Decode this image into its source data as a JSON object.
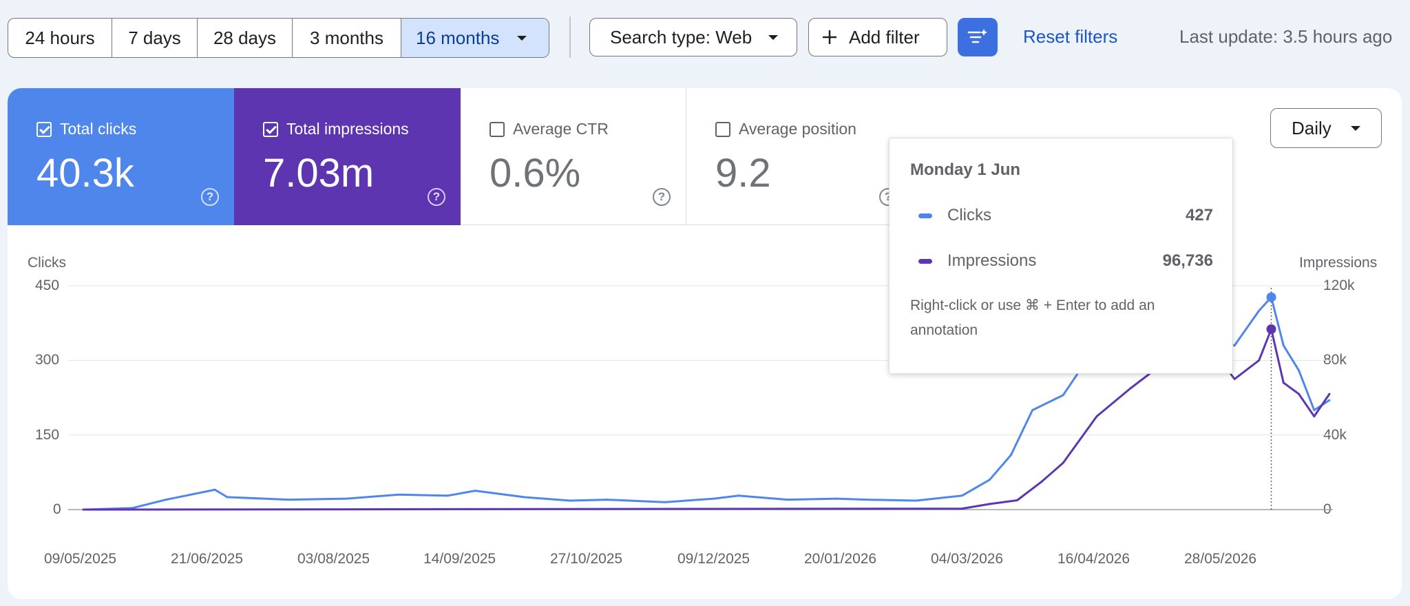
{
  "ranges": [
    {
      "label": "24 hours",
      "active": false
    },
    {
      "label": "7 days",
      "active": false
    },
    {
      "label": "28 days",
      "active": false
    },
    {
      "label": "3 months",
      "active": false
    },
    {
      "label": "16 months",
      "active": true
    }
  ],
  "filters": {
    "search_type": "Search type: Web",
    "add_filter": "Add filter",
    "reset": "Reset filters",
    "last_update": "Last update: 3.5 hours ago"
  },
  "metrics": [
    {
      "label": "Total clicks",
      "value": "40.3k",
      "checked": true,
      "color": "#4f86ec"
    },
    {
      "label": "Total impressions",
      "value": "7.03m",
      "checked": true,
      "color": "#5e35b1"
    },
    {
      "label": "Average CTR",
      "value": "0.6%",
      "checked": false
    },
    {
      "label": "Average position",
      "value": "9.2",
      "checked": false
    }
  ],
  "granularity": "Daily",
  "colors": {
    "clicks": "#4f86ec",
    "impressions": "#5e35b1",
    "active_range": "#d3e3fd",
    "accent": "#3c6fe0"
  },
  "tooltip": {
    "date": "Monday 1 Jun",
    "rows": [
      {
        "label": "Clicks",
        "value": "427"
      },
      {
        "label": "Impressions",
        "value": "96,736"
      }
    ],
    "note": "Right-click or use ⌘ + Enter to add an annotation"
  },
  "annotation_marker": "1",
  "chart_data": {
    "type": "line",
    "left_axis": {
      "title": "Clicks",
      "ticks": [
        "0",
        "150",
        "300",
        "450"
      ],
      "range": [
        0,
        450
      ]
    },
    "right_axis": {
      "title": "Impressions",
      "ticks": [
        "0",
        "40k",
        "80k",
        "120k"
      ],
      "range": [
        0,
        120000
      ]
    },
    "x_ticks": [
      "09/05/2025",
      "21/06/2025",
      "03/08/2025",
      "14/09/2025",
      "27/10/2025",
      "09/12/2025",
      "20/01/2026",
      "04/03/2026",
      "16/04/2026",
      "28/05/2026"
    ],
    "x_range": [
      "2025-05-09",
      "2026-06-20"
    ],
    "grid": true,
    "series": [
      {
        "name": "Clicks",
        "axis": "left",
        "color": "#4f86ec",
        "points": [
          [
            "2025-05-09",
            0
          ],
          [
            "2025-05-25",
            3
          ],
          [
            "2025-06-05",
            20
          ],
          [
            "2025-06-21",
            40
          ],
          [
            "2025-06-25",
            25
          ],
          [
            "2025-07-15",
            20
          ],
          [
            "2025-08-03",
            22
          ],
          [
            "2025-08-20",
            30
          ],
          [
            "2025-09-05",
            28
          ],
          [
            "2025-09-14",
            38
          ],
          [
            "2025-09-30",
            25
          ],
          [
            "2025-10-15",
            18
          ],
          [
            "2025-10-27",
            20
          ],
          [
            "2025-11-15",
            15
          ],
          [
            "2025-12-01",
            22
          ],
          [
            "2025-12-09",
            28
          ],
          [
            "2025-12-25",
            20
          ],
          [
            "2026-01-10",
            22
          ],
          [
            "2026-01-20",
            20
          ],
          [
            "2026-02-05",
            18
          ],
          [
            "2026-02-20",
            28
          ],
          [
            "2026-03-01",
            60
          ],
          [
            "2026-03-08",
            110
          ],
          [
            "2026-03-15",
            200
          ],
          [
            "2026-03-25",
            230
          ],
          [
            "2026-04-05",
            330
          ],
          [
            "2026-04-16",
            340
          ],
          [
            "2026-04-28",
            310
          ],
          [
            "2026-05-10",
            345
          ],
          [
            "2026-05-20",
            330
          ],
          [
            "2026-05-28",
            400
          ],
          [
            "2026-06-01",
            427
          ],
          [
            "2026-06-05",
            330
          ],
          [
            "2026-06-10",
            280
          ],
          [
            "2026-06-15",
            200
          ],
          [
            "2026-06-20",
            220
          ]
        ]
      },
      {
        "name": "Impressions",
        "axis": "right",
        "color": "#5e35b1",
        "points": [
          [
            "2025-05-09",
            0
          ],
          [
            "2026-02-20",
            500
          ],
          [
            "2026-03-01",
            3000
          ],
          [
            "2026-03-10",
            5000
          ],
          [
            "2026-03-18",
            15000
          ],
          [
            "2026-03-25",
            25000
          ],
          [
            "2026-04-05",
            50000
          ],
          [
            "2026-04-16",
            65000
          ],
          [
            "2026-04-28",
            80000
          ],
          [
            "2026-05-10",
            92000
          ],
          [
            "2026-05-20",
            70000
          ],
          [
            "2026-05-28",
            80000
          ],
          [
            "2026-06-01",
            96736
          ],
          [
            "2026-06-05",
            68000
          ],
          [
            "2026-06-10",
            62000
          ],
          [
            "2026-06-15",
            50000
          ],
          [
            "2026-06-20",
            62000
          ]
        ]
      }
    ]
  }
}
